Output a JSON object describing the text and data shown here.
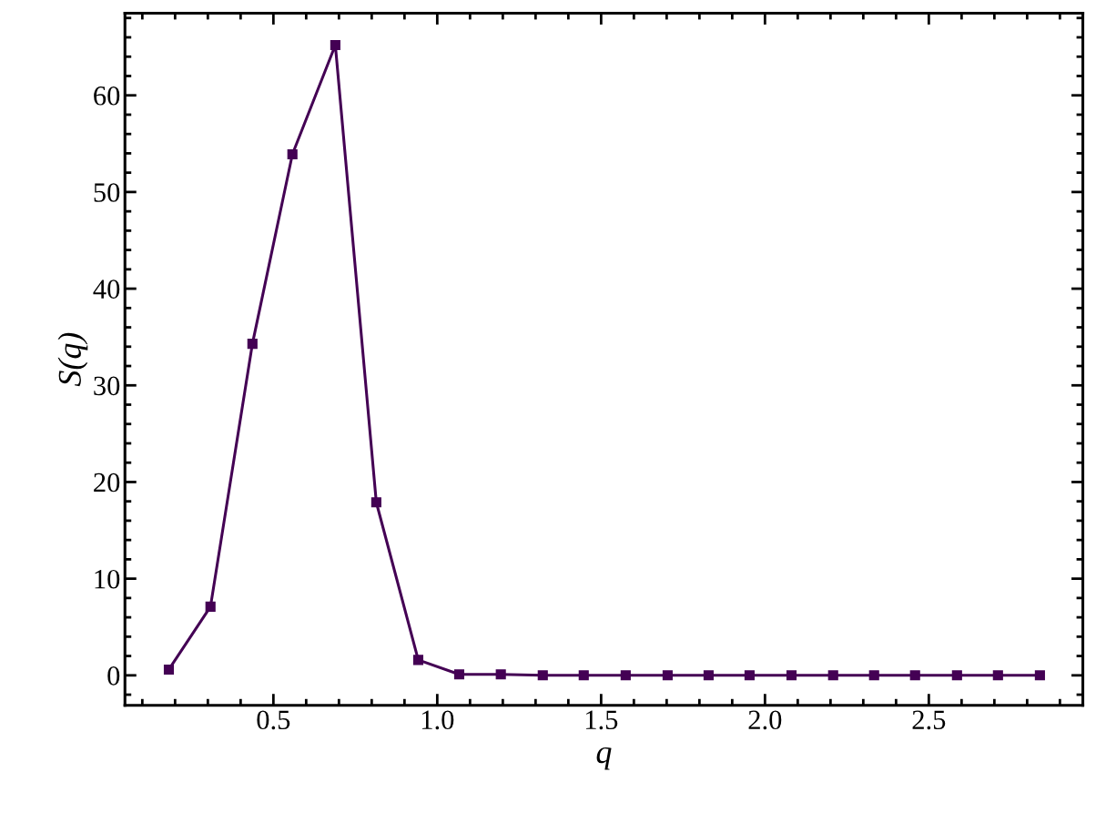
{
  "chart_data": {
    "type": "line",
    "xlabel": "q",
    "ylabel": "S(q)",
    "x": [
      0.181,
      0.308,
      0.436,
      0.558,
      0.689,
      0.814,
      0.942,
      1.067,
      1.194,
      1.322,
      1.447,
      1.575,
      1.703,
      1.828,
      1.953,
      2.081,
      2.208,
      2.333,
      2.458,
      2.586,
      2.711,
      2.839
    ],
    "series": [
      {
        "color": "#440154",
        "values": [
          0.6,
          7.1,
          34.3,
          53.9,
          65.2,
          17.9,
          1.6,
          0.1,
          0.1,
          0,
          0,
          0,
          0,
          0,
          0,
          0,
          0,
          0,
          0,
          0,
          0,
          0
        ]
      }
    ],
    "xlim": [
      0.047,
      2.97
    ],
    "ylim": [
      -3.1,
      68.5
    ],
    "xticks": [
      {
        "value": 0.5,
        "label": "0.5"
      },
      {
        "value": 1.0,
        "label": "1.0"
      },
      {
        "value": 1.5,
        "label": "1.5"
      },
      {
        "value": 2.0,
        "label": "2.0"
      },
      {
        "value": 2.5,
        "label": "2.5"
      }
    ],
    "yticks": [
      0,
      10,
      20,
      30,
      40,
      50,
      60
    ],
    "marker": "square",
    "line_style": "solid",
    "grid": false,
    "legend": false
  }
}
